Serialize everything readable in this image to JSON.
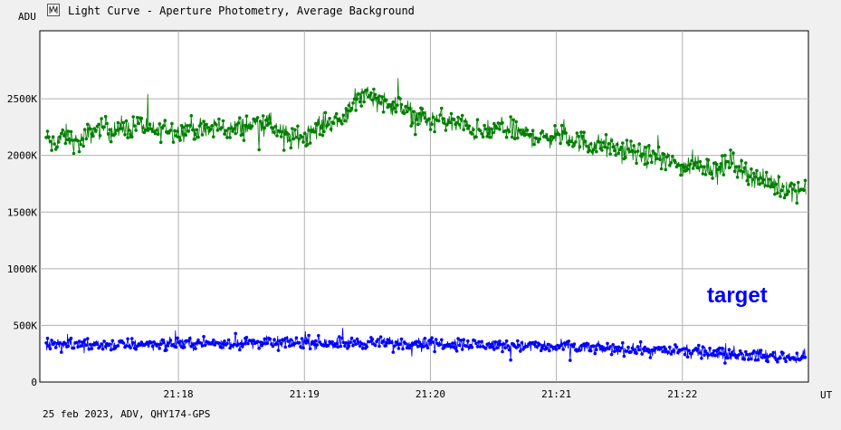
{
  "window": {
    "title": "Light Curve - Aperture Photometry, Average Background",
    "icon": "light-curve-icon"
  },
  "footer": {
    "text": "25 feb 2023, ADV, QHY174-GPS"
  },
  "annotation": {
    "text": "target",
    "color": "#0000ff"
  },
  "chart_data": {
    "type": "scatter",
    "title": "Light Curve - Aperture Photometry, Average Background",
    "xlabel": "UT",
    "ylabel": "ADU",
    "x_ticks": [
      {
        "value": 1.0,
        "label": "21:18"
      },
      {
        "value": 2.0,
        "label": "21:19"
      },
      {
        "value": 3.0,
        "label": "21:20"
      },
      {
        "value": 4.0,
        "label": "21:21"
      },
      {
        "value": 5.0,
        "label": "21:22"
      }
    ],
    "y_ticks": [
      {
        "value": 0,
        "label": "0"
      },
      {
        "value": 500,
        "label": "500K"
      },
      {
        "value": 1000,
        "label": "1000K"
      },
      {
        "value": 1500,
        "label": "1500K"
      },
      {
        "value": 2000,
        "label": "2000K"
      },
      {
        "value": 2500,
        "label": "2500K"
      }
    ],
    "ylim": [
      0,
      3100
    ],
    "xlim": [
      -0.1,
      6.0
    ],
    "grid": true,
    "series": [
      {
        "color": "#007f00",
        "x": [
          -0.05,
          0.0,
          0.1,
          0.2,
          0.3,
          0.4,
          0.5,
          0.6,
          0.7,
          0.8,
          0.9,
          1.0,
          1.1,
          1.2,
          1.3,
          1.4,
          1.5,
          1.6,
          1.7,
          1.8,
          1.9,
          2.0,
          2.1,
          2.2,
          2.3,
          2.4,
          2.5,
          2.6,
          2.7,
          2.8,
          2.9,
          3.0,
          3.1,
          3.2,
          3.3,
          3.4,
          3.5,
          3.6,
          3.7,
          3.8,
          3.9,
          4.0,
          4.1,
          4.2,
          4.3,
          4.4,
          4.5,
          4.6,
          4.7,
          4.8,
          4.9,
          5.0,
          5.1,
          5.2,
          5.3,
          5.4,
          5.5,
          5.6,
          5.7,
          5.8,
          5.9,
          5.98
        ],
        "y": [
          2150,
          2100,
          2180,
          2100,
          2200,
          2250,
          2220,
          2230,
          2280,
          2200,
          2250,
          2200,
          2250,
          2200,
          2260,
          2220,
          2250,
          2280,
          2300,
          2200,
          2150,
          2180,
          2250,
          2300,
          2320,
          2500,
          2550,
          2480,
          2450,
          2400,
          2350,
          2300,
          2320,
          2280,
          2250,
          2200,
          2220,
          2250,
          2200,
          2180,
          2150,
          2180,
          2150,
          2120,
          2100,
          2080,
          2050,
          2030,
          2000,
          1980,
          1950,
          1900,
          1930,
          1900,
          1880,
          1950,
          1850,
          1800,
          1750,
          1720,
          1700,
          1700
        ],
        "spread": 110
      },
      {
        "name": "target",
        "color": "#0000ff",
        "x": [
          -0.05,
          0.5,
          1.0,
          1.5,
          2.0,
          2.5,
          3.0,
          3.5,
          4.0,
          4.5,
          5.0,
          5.5,
          5.98
        ],
        "y": [
          330,
          330,
          340,
          345,
          350,
          345,
          340,
          330,
          310,
          290,
          270,
          240,
          220
        ],
        "spread": 60
      }
    ]
  }
}
